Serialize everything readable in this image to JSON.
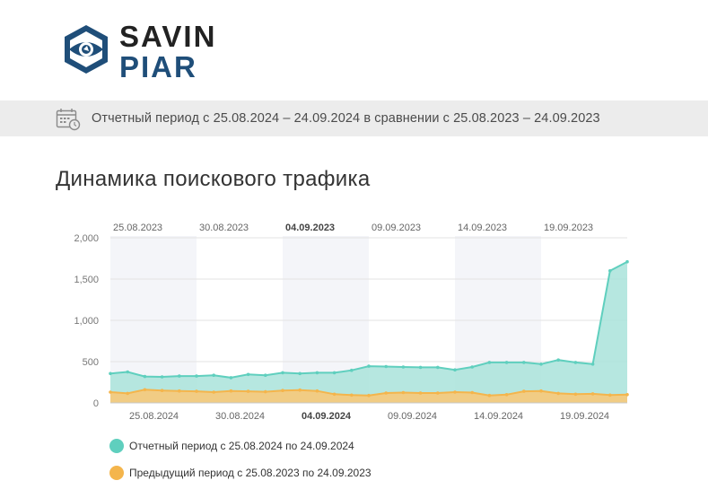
{
  "brand": {
    "line1": "SAVIN",
    "line2": "PIAR"
  },
  "period_bar": {
    "icon": "calendar-clock-icon",
    "text": "Отчетный период с 25.08.2024 – 24.09.2024 в сравнении с 25.08.2023 – 24.09.2023"
  },
  "section": {
    "title": "Динамика поискового трафика"
  },
  "chart_data": {
    "type": "area",
    "ylim": [
      0,
      2000
    ],
    "yticks": [
      "0",
      "500",
      "1,000",
      "1,500",
      "2,000"
    ],
    "ytick_values": [
      0,
      500,
      1000,
      1500,
      2000
    ],
    "top_axis_labels": [
      "25.08.2023",
      "30.08.2023",
      "04.09.2023",
      "09.09.2023",
      "14.09.2023",
      "19.09.2023"
    ],
    "bottom_axis_labels": [
      "25.08.2024",
      "30.08.2024",
      "04.09.2024",
      "09.09.2024",
      "14.09.2024",
      "19.09.2024"
    ],
    "series": [
      {
        "name": "Отчетный период с 25.08.2024 по 24.09.2024",
        "color": "#5fcfbe",
        "fill": "#a9e3da",
        "values": [
          355,
          375,
          320,
          315,
          325,
          325,
          335,
          305,
          345,
          335,
          365,
          355,
          365,
          365,
          395,
          445,
          440,
          435,
          430,
          430,
          400,
          435,
          490,
          490,
          490,
          470,
          520,
          490,
          470,
          1600,
          1710
        ]
      },
      {
        "name": "Предыдущий период с 25.08.2023 по 24.09.2023",
        "color": "#f4b54c",
        "fill": "#f7c97a",
        "values": [
          130,
          115,
          160,
          150,
          145,
          140,
          130,
          145,
          140,
          135,
          150,
          155,
          145,
          105,
          95,
          90,
          120,
          125,
          120,
          120,
          130,
          125,
          90,
          100,
          140,
          145,
          115,
          105,
          110,
          95,
          100
        ]
      }
    ]
  },
  "legend": {
    "items": [
      {
        "label": "Отчетный период с 25.08.2024 по 24.09.2024",
        "color": "#5fcfbe"
      },
      {
        "label": "Предыдущий период с 25.08.2023 по 24.09.2023",
        "color": "#f4b54c"
      }
    ]
  }
}
